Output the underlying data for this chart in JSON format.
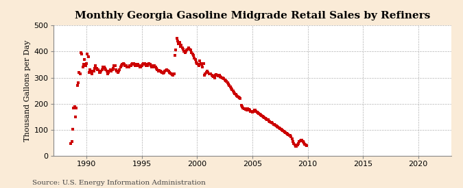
{
  "title": "Monthly Georgia Gasoline Midgrade Retail Sales by Refiners",
  "ylabel": "Thousand Gallons per Day",
  "source": "Source: U.S. Energy Information Administration",
  "fig_bg_color": "#faebd7",
  "plot_bg_color": "#ffffff",
  "line_color": "#cc0000",
  "marker": "s",
  "markersize": 3.0,
  "xlim": [
    1987.0,
    2023.0
  ],
  "ylim": [
    0,
    500
  ],
  "yticks": [
    0,
    100,
    200,
    300,
    400,
    500
  ],
  "xticks": [
    1990,
    1995,
    2000,
    2005,
    2010,
    2015,
    2020
  ],
  "title_fontsize": 11,
  "label_fontsize": 8,
  "tick_fontsize": 8,
  "source_fontsize": 7.5,
  "data": [
    [
      1988.583,
      47
    ],
    [
      1988.667,
      55
    ],
    [
      1988.75,
      103
    ],
    [
      1988.833,
      185
    ],
    [
      1988.917,
      190
    ],
    [
      1989.0,
      150
    ],
    [
      1989.083,
      185
    ],
    [
      1989.167,
      270
    ],
    [
      1989.25,
      280
    ],
    [
      1989.333,
      320
    ],
    [
      1989.417,
      315
    ],
    [
      1989.5,
      395
    ],
    [
      1989.583,
      390
    ],
    [
      1989.667,
      340
    ],
    [
      1989.75,
      350
    ],
    [
      1989.833,
      370
    ],
    [
      1989.917,
      345
    ],
    [
      1990.0,
      355
    ],
    [
      1990.083,
      390
    ],
    [
      1990.167,
      380
    ],
    [
      1990.25,
      320
    ],
    [
      1990.333,
      330
    ],
    [
      1990.417,
      325
    ],
    [
      1990.5,
      315
    ],
    [
      1990.583,
      325
    ],
    [
      1990.667,
      325
    ],
    [
      1990.75,
      335
    ],
    [
      1990.833,
      345
    ],
    [
      1990.917,
      335
    ],
    [
      1991.0,
      330
    ],
    [
      1991.083,
      330
    ],
    [
      1991.167,
      320
    ],
    [
      1991.25,
      320
    ],
    [
      1991.333,
      325
    ],
    [
      1991.417,
      330
    ],
    [
      1991.5,
      340
    ],
    [
      1991.583,
      340
    ],
    [
      1991.667,
      335
    ],
    [
      1991.75,
      330
    ],
    [
      1991.833,
      325
    ],
    [
      1991.917,
      315
    ],
    [
      1992.0,
      320
    ],
    [
      1992.083,
      325
    ],
    [
      1992.167,
      330
    ],
    [
      1992.25,
      325
    ],
    [
      1992.333,
      330
    ],
    [
      1992.417,
      335
    ],
    [
      1992.5,
      345
    ],
    [
      1992.583,
      345
    ],
    [
      1992.667,
      330
    ],
    [
      1992.75,
      325
    ],
    [
      1992.833,
      320
    ],
    [
      1992.917,
      325
    ],
    [
      1993.0,
      330
    ],
    [
      1993.083,
      340
    ],
    [
      1993.167,
      345
    ],
    [
      1993.25,
      350
    ],
    [
      1993.333,
      355
    ],
    [
      1993.417,
      350
    ],
    [
      1993.5,
      345
    ],
    [
      1993.583,
      345
    ],
    [
      1993.667,
      340
    ],
    [
      1993.75,
      340
    ],
    [
      1993.833,
      340
    ],
    [
      1993.917,
      345
    ],
    [
      1994.0,
      345
    ],
    [
      1994.083,
      350
    ],
    [
      1994.167,
      355
    ],
    [
      1994.25,
      355
    ],
    [
      1994.333,
      350
    ],
    [
      1994.417,
      345
    ],
    [
      1994.5,
      345
    ],
    [
      1994.583,
      350
    ],
    [
      1994.667,
      350
    ],
    [
      1994.75,
      345
    ],
    [
      1994.833,
      340
    ],
    [
      1994.917,
      340
    ],
    [
      1995.0,
      345
    ],
    [
      1995.083,
      350
    ],
    [
      1995.167,
      355
    ],
    [
      1995.25,
      355
    ],
    [
      1995.333,
      350
    ],
    [
      1995.417,
      345
    ],
    [
      1995.5,
      345
    ],
    [
      1995.583,
      350
    ],
    [
      1995.667,
      355
    ],
    [
      1995.75,
      350
    ],
    [
      1995.833,
      345
    ],
    [
      1995.917,
      340
    ],
    [
      1996.0,
      340
    ],
    [
      1996.083,
      345
    ],
    [
      1996.167,
      345
    ],
    [
      1996.25,
      340
    ],
    [
      1996.333,
      335
    ],
    [
      1996.417,
      330
    ],
    [
      1996.5,
      325
    ],
    [
      1996.583,
      328
    ],
    [
      1996.667,
      325
    ],
    [
      1996.75,
      322
    ],
    [
      1996.833,
      320
    ],
    [
      1996.917,
      318
    ],
    [
      1997.0,
      320
    ],
    [
      1997.083,
      325
    ],
    [
      1997.167,
      328
    ],
    [
      1997.25,
      330
    ],
    [
      1997.333,
      328
    ],
    [
      1997.417,
      325
    ],
    [
      1997.5,
      320
    ],
    [
      1997.583,
      318
    ],
    [
      1997.667,
      315
    ],
    [
      1997.75,
      312
    ],
    [
      1997.833,
      310
    ],
    [
      1997.917,
      315
    ],
    [
      1998.0,
      385
    ],
    [
      1998.083,
      405
    ],
    [
      1998.167,
      450
    ],
    [
      1998.25,
      440
    ],
    [
      1998.333,
      430
    ],
    [
      1998.417,
      435
    ],
    [
      1998.5,
      420
    ],
    [
      1998.583,
      425
    ],
    [
      1998.667,
      415
    ],
    [
      1998.75,
      410
    ],
    [
      1998.833,
      400
    ],
    [
      1998.917,
      395
    ],
    [
      1999.0,
      400
    ],
    [
      1999.083,
      405
    ],
    [
      1999.167,
      410
    ],
    [
      1999.25,
      415
    ],
    [
      1999.333,
      410
    ],
    [
      1999.417,
      405
    ],
    [
      1999.5,
      395
    ],
    [
      1999.583,
      390
    ],
    [
      1999.667,
      385
    ],
    [
      1999.75,
      375
    ],
    [
      1999.833,
      370
    ],
    [
      1999.917,
      360
    ],
    [
      2000.0,
      355
    ],
    [
      2000.083,
      350
    ],
    [
      2000.167,
      345
    ],
    [
      2000.25,
      365
    ],
    [
      2000.333,
      355
    ],
    [
      2000.417,
      350
    ],
    [
      2000.5,
      340
    ],
    [
      2000.583,
      355
    ],
    [
      2000.667,
      310
    ],
    [
      2000.75,
      315
    ],
    [
      2000.833,
      320
    ],
    [
      2000.917,
      325
    ],
    [
      2001.0,
      320
    ],
    [
      2001.083,
      315
    ],
    [
      2001.167,
      315
    ],
    [
      2001.25,
      315
    ],
    [
      2001.333,
      310
    ],
    [
      2001.417,
      308
    ],
    [
      2001.5,
      305
    ],
    [
      2001.583,
      300
    ],
    [
      2001.667,
      310
    ],
    [
      2001.75,
      312
    ],
    [
      2001.833,
      310
    ],
    [
      2001.917,
      308
    ],
    [
      2002.0,
      310
    ],
    [
      2002.083,
      305
    ],
    [
      2002.167,
      302
    ],
    [
      2002.25,
      300
    ],
    [
      2002.333,
      298
    ],
    [
      2002.417,
      295
    ],
    [
      2002.5,
      290
    ],
    [
      2002.583,
      288
    ],
    [
      2002.667,
      285
    ],
    [
      2002.75,
      280
    ],
    [
      2002.833,
      275
    ],
    [
      2002.917,
      270
    ],
    [
      2003.0,
      265
    ],
    [
      2003.083,
      260
    ],
    [
      2003.167,
      255
    ],
    [
      2003.25,
      250
    ],
    [
      2003.333,
      245
    ],
    [
      2003.417,
      240
    ],
    [
      2003.5,
      235
    ],
    [
      2003.583,
      232
    ],
    [
      2003.667,
      228
    ],
    [
      2003.75,
      225
    ],
    [
      2003.833,
      222
    ],
    [
      2003.917,
      220
    ],
    [
      2004.0,
      195
    ],
    [
      2004.083,
      188
    ],
    [
      2004.167,
      185
    ],
    [
      2004.25,
      182
    ],
    [
      2004.333,
      180
    ],
    [
      2004.417,
      178
    ],
    [
      2004.5,
      175
    ],
    [
      2004.583,
      180
    ],
    [
      2004.667,
      178
    ],
    [
      2004.75,
      175
    ],
    [
      2004.833,
      172
    ],
    [
      2004.917,
      170
    ],
    [
      2005.0,
      168
    ],
    [
      2005.083,
      172
    ],
    [
      2005.167,
      175
    ],
    [
      2005.25,
      175
    ],
    [
      2005.333,
      170
    ],
    [
      2005.417,
      168
    ],
    [
      2005.5,
      165
    ],
    [
      2005.583,
      162
    ],
    [
      2005.667,
      160
    ],
    [
      2005.75,
      158
    ],
    [
      2005.833,
      155
    ],
    [
      2005.917,
      152
    ],
    [
      2006.0,
      150
    ],
    [
      2006.083,
      148
    ],
    [
      2006.167,
      145
    ],
    [
      2006.25,
      143
    ],
    [
      2006.333,
      140
    ],
    [
      2006.417,
      138
    ],
    [
      2006.5,
      135
    ],
    [
      2006.583,
      132
    ],
    [
      2006.667,
      130
    ],
    [
      2006.75,
      128
    ],
    [
      2006.833,
      125
    ],
    [
      2006.917,
      122
    ],
    [
      2007.0,
      120
    ],
    [
      2007.083,
      118
    ],
    [
      2007.167,
      115
    ],
    [
      2007.25,
      112
    ],
    [
      2007.333,
      110
    ],
    [
      2007.417,
      108
    ],
    [
      2007.5,
      105
    ],
    [
      2007.583,
      102
    ],
    [
      2007.667,
      100
    ],
    [
      2007.75,
      98
    ],
    [
      2007.833,
      95
    ],
    [
      2007.917,
      92
    ],
    [
      2008.0,
      90
    ],
    [
      2008.083,
      88
    ],
    [
      2008.167,
      85
    ],
    [
      2008.25,
      82
    ],
    [
      2008.333,
      80
    ],
    [
      2008.417,
      78
    ],
    [
      2008.5,
      75
    ],
    [
      2008.583,
      65
    ],
    [
      2008.667,
      55
    ],
    [
      2008.75,
      48
    ],
    [
      2008.833,
      42
    ],
    [
      2008.917,
      38
    ],
    [
      2009.0,
      38
    ],
    [
      2009.083,
      42
    ],
    [
      2009.167,
      48
    ],
    [
      2009.25,
      55
    ],
    [
      2009.333,
      58
    ],
    [
      2009.417,
      62
    ],
    [
      2009.5,
      60
    ],
    [
      2009.583,
      55
    ],
    [
      2009.667,
      50
    ],
    [
      2009.75,
      45
    ],
    [
      2009.833,
      42
    ],
    [
      2009.917,
      40
    ]
  ]
}
